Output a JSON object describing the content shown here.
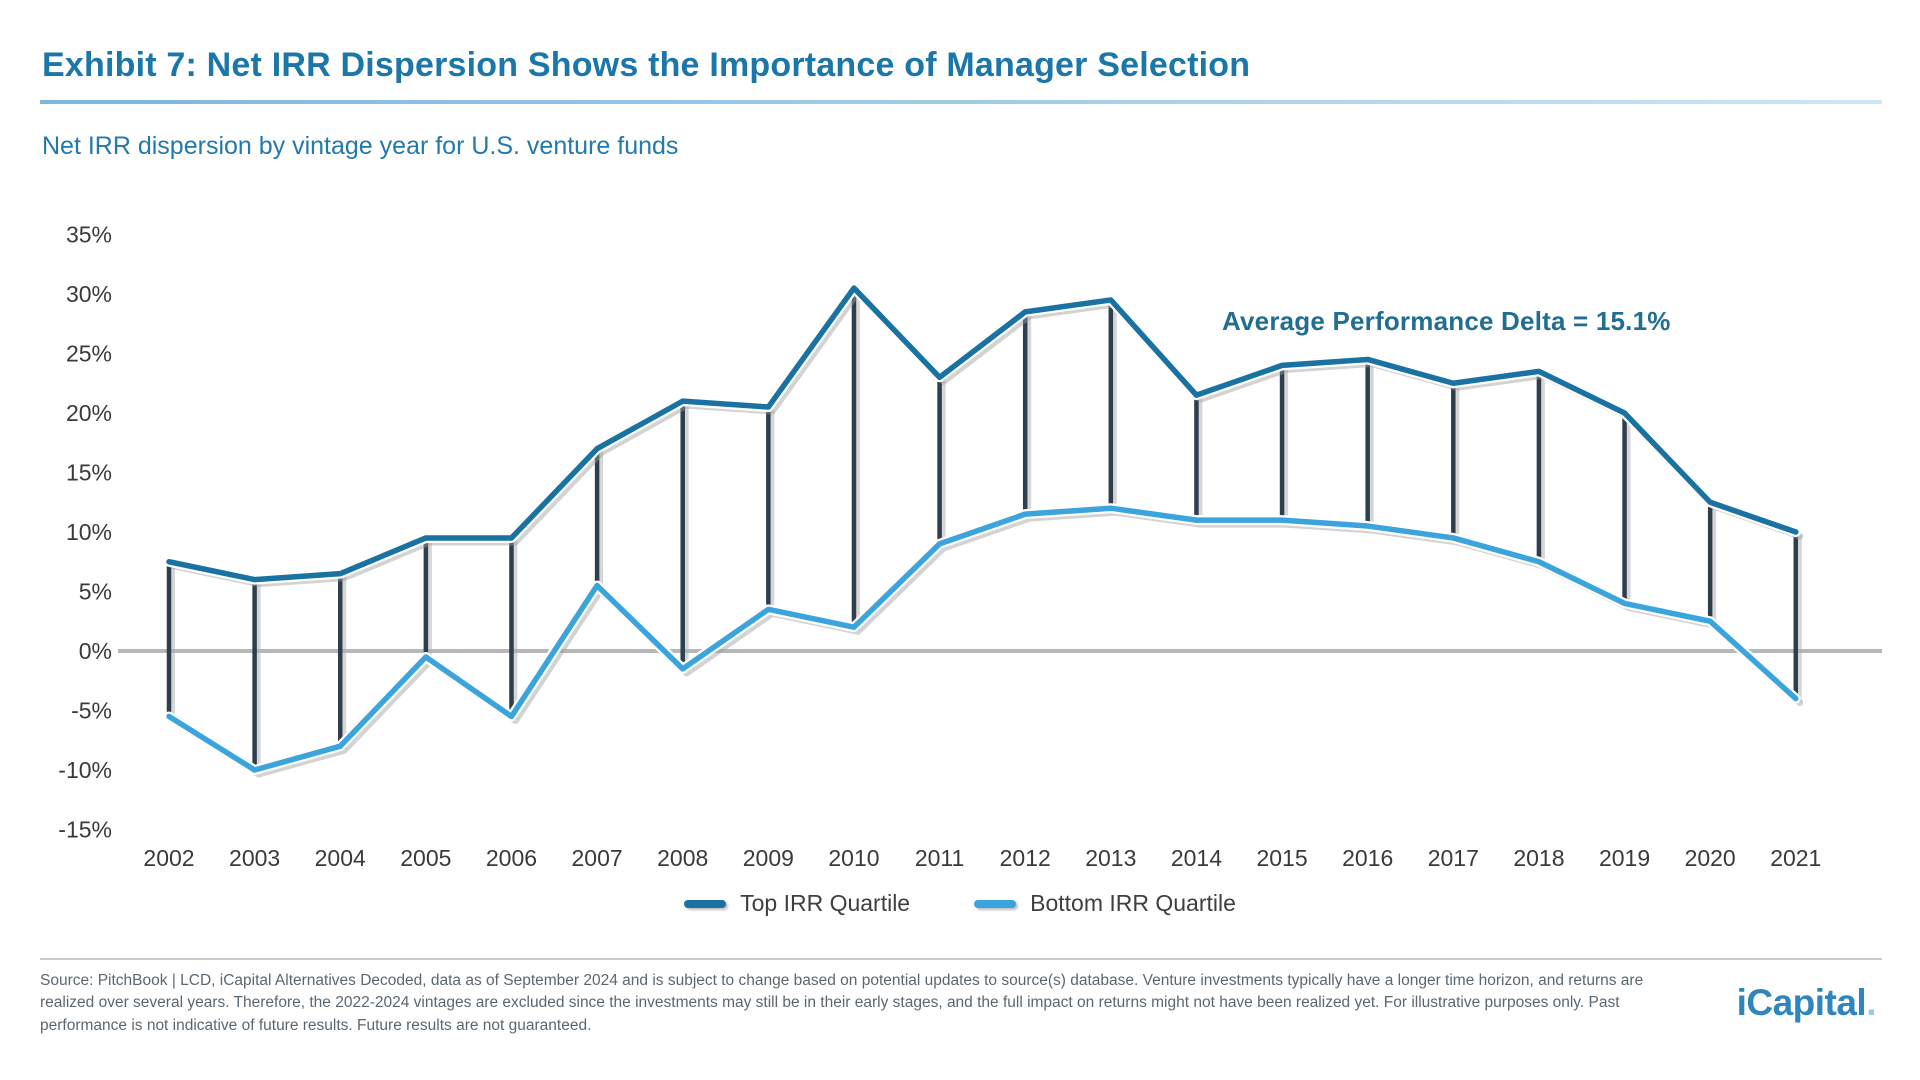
{
  "header": {
    "title": "Exhibit 7: Net IRR Dispersion Shows the Importance of Manager Selection",
    "subtitle": "Net IRR dispersion by vintage year for U.S. venture funds"
  },
  "chart_data": {
    "type": "line",
    "title": "Net IRR dispersion by vintage year for U.S. venture funds",
    "categories": [
      "2002",
      "2003",
      "2004",
      "2005",
      "2006",
      "2007",
      "2008",
      "2009",
      "2010",
      "2011",
      "2012",
      "2013",
      "2014",
      "2015",
      "2016",
      "2017",
      "2018",
      "2019",
      "2020",
      "2021"
    ],
    "series": [
      {
        "name": "Top IRR Quartile",
        "color": "#1a72a3",
        "values": [
          7.5,
          6,
          6.5,
          9.5,
          9.5,
          17,
          21,
          20.5,
          30.5,
          23,
          28.5,
          29.5,
          21.5,
          24,
          24.5,
          22.5,
          23.5,
          20,
          12.5,
          10
        ]
      },
      {
        "name": "Bottom IRR Quartile",
        "color": "#3ba4dd",
        "values": [
          -5.5,
          -10,
          -8,
          -0.5,
          -5.5,
          5.5,
          -1.5,
          3.5,
          2,
          9,
          11.5,
          12,
          11,
          11,
          10.5,
          9.5,
          7.5,
          4,
          2.5,
          -4
        ]
      }
    ],
    "annotation": "Average Performance Delta = 15.1%",
    "xlabel": "",
    "ylabel": "",
    "ylim": [
      -15,
      35
    ],
    "ytick_step": 5,
    "ytick_suffix": "%",
    "grid": "zero-line-only",
    "legend_position": "bottom-center",
    "connector_bars": true,
    "connector_color": "#2d3e4e",
    "zero_line_color": "#b5b8ba",
    "label_color": "#3a3a3a"
  },
  "legend": {
    "items": [
      {
        "label": "Top IRR Quartile",
        "color": "#1a72a3"
      },
      {
        "label": "Bottom IRR Quartile",
        "color": "#3ba4dd"
      }
    ]
  },
  "footer": {
    "source_text": "Source: PitchBook | LCD, iCapital Alternatives Decoded, data as of September 2024 and is subject to change based on potential updates to source(s) database. Venture investments typically have a longer time horizon, and returns are realized over several years. Therefore, the 2022-2024 vintages are excluded since the investments may still be in their early stages, and the full impact on returns might not have been realized yet. For illustrative purposes only. Past performance is not indicative of future results. Future results are not guaranteed.",
    "logo_text": "iCapital",
    "logo_mark": "."
  }
}
